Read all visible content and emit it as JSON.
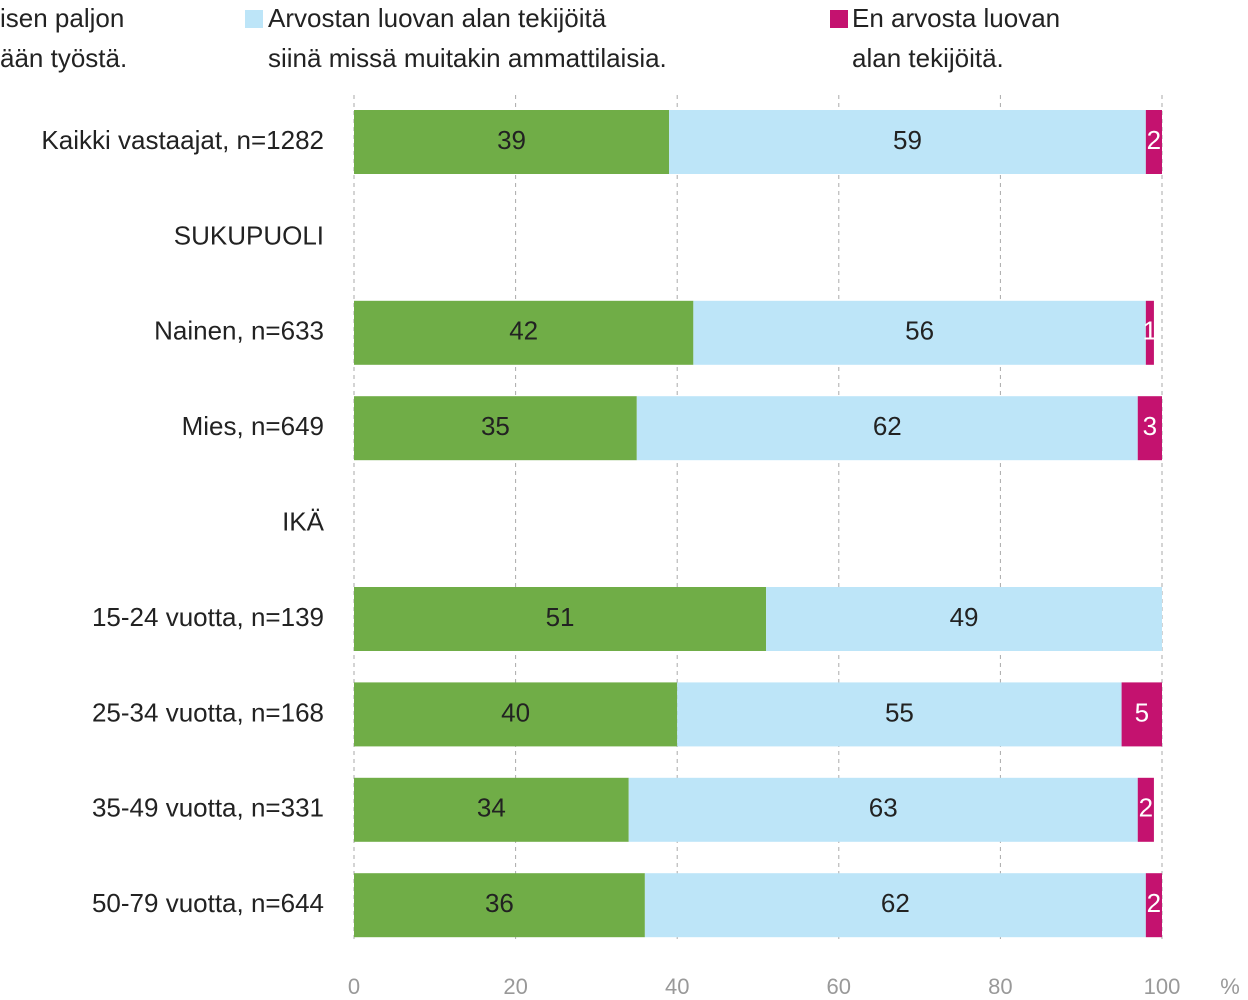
{
  "chart_data": {
    "type": "stacked_barh",
    "categories": [
      "Kaikki vastaajat, n=1282",
      "SUKUPUOLI",
      "Nainen, n=633",
      "Mies, n=649",
      "IKÄ",
      "15-24 vuotta, n=139",
      "25-34 vuotta, n=168",
      "35-49 vuotta, n=331",
      "50-79 vuotta, n=644"
    ],
    "series": [
      {
        "name": "isen paljon\nään työstä.",
        "color": "#70ad47",
        "values": [
          39,
          null,
          42,
          35,
          null,
          51,
          40,
          34,
          36
        ]
      },
      {
        "name": "Arvostan luovan alan tekijöitä\nsiinä missä muitakin ammattilaisia.",
        "color": "#bde5f8",
        "values": [
          59,
          null,
          56,
          62,
          null,
          49,
          55,
          63,
          62
        ]
      },
      {
        "name": "En arvosta luovan\nalan tekijöitä.",
        "color": "#c4126f",
        "values": [
          2,
          null,
          1,
          3,
          null,
          null,
          5,
          2,
          2
        ]
      }
    ],
    "xlim": [
      0,
      100
    ],
    "xticks": [
      0,
      20,
      40,
      60,
      80,
      100
    ],
    "xlabel": "%",
    "grid": true
  }
}
